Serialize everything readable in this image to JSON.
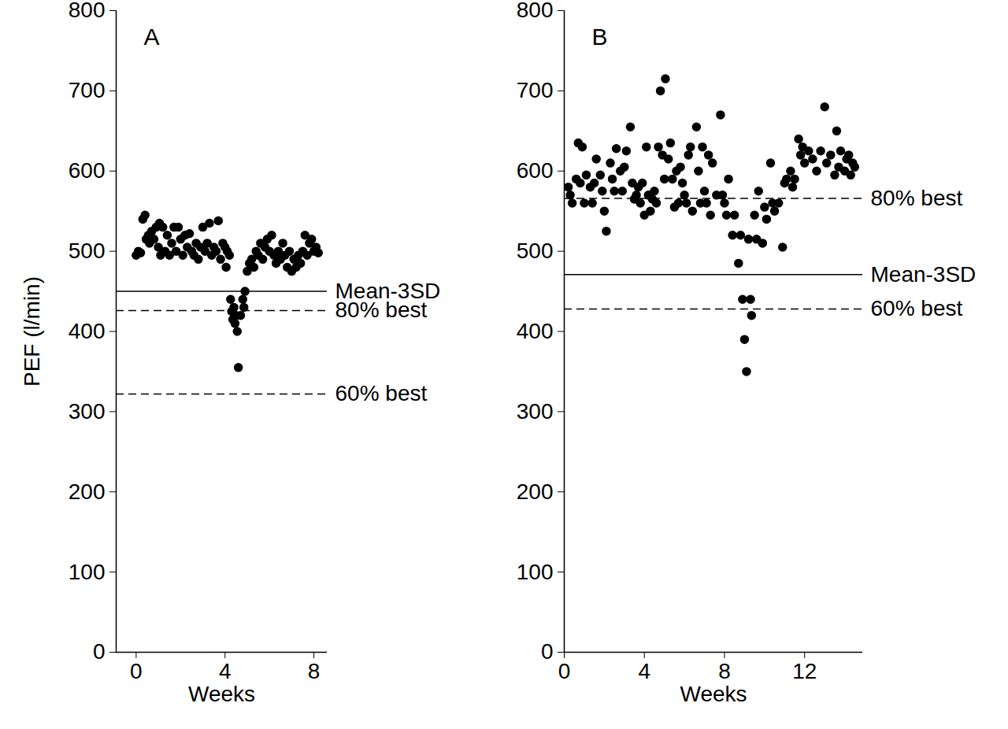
{
  "chart_data": [
    {
      "type": "scatter",
      "title": "A",
      "x_label": "Weeks",
      "y_label": "PEF (l/min)",
      "color": "#000000",
      "marker": "circle",
      "xlim": [
        -0.9,
        8.6
      ],
      "xticks": [
        0,
        4,
        8
      ],
      "ylim": [
        0,
        800
      ],
      "yticks": [
        0,
        100,
        200,
        300,
        400,
        500,
        600,
        700,
        800
      ],
      "x": [
        0.0,
        0.1,
        0.2,
        0.3,
        0.4,
        0.45,
        0.55,
        0.6,
        0.7,
        0.8,
        0.9,
        1.0,
        1.05,
        1.1,
        1.2,
        1.3,
        1.4,
        1.5,
        1.6,
        1.7,
        1.8,
        1.9,
        2.0,
        2.1,
        2.2,
        2.3,
        2.4,
        2.5,
        2.6,
        2.7,
        2.8,
        2.9,
        3.0,
        3.1,
        3.2,
        3.3,
        3.4,
        3.5,
        3.6,
        3.7,
        3.8,
        3.9,
        4.0,
        4.05,
        4.1,
        4.2,
        4.25,
        4.3,
        4.35,
        4.4,
        4.45,
        4.5,
        4.55,
        4.6,
        4.7,
        4.8,
        4.85,
        4.9,
        5.0,
        5.1,
        5.2,
        5.3,
        5.4,
        5.5,
        5.6,
        5.7,
        5.8,
        5.9,
        6.0,
        6.1,
        6.2,
        6.3,
        6.4,
        6.5,
        6.6,
        6.7,
        6.8,
        6.9,
        7.0,
        7.1,
        7.2,
        7.3,
        7.4,
        7.5,
        7.6,
        7.7,
        7.8,
        7.9,
        8.0,
        8.1,
        8.2
      ],
      "values": [
        495,
        500,
        498,
        540,
        545,
        515,
        520,
        510,
        525,
        515,
        530,
        505,
        535,
        495,
        530,
        500,
        520,
        495,
        510,
        530,
        500,
        530,
        515,
        495,
        520,
        505,
        522,
        500,
        495,
        510,
        490,
        505,
        530,
        500,
        510,
        535,
        495,
        505,
        500,
        538,
        490,
        510,
        505,
        480,
        500,
        495,
        440,
        425,
        415,
        430,
        410,
        420,
        400,
        355,
        420,
        440,
        430,
        450,
        475,
        485,
        490,
        480,
        500,
        495,
        510,
        490,
        505,
        515,
        500,
        520,
        495,
        485,
        500,
        490,
        510,
        495,
        480,
        500,
        475,
        490,
        480,
        495,
        485,
        500,
        520,
        495,
        510,
        515,
        500,
        505,
        498
      ],
      "reference_lines": [
        {
          "label": "Mean-3SD",
          "value": 450,
          "line_style": "solid"
        },
        {
          "label": "80% best",
          "value": 426,
          "line_style": "dashed"
        },
        {
          "label": "60% best",
          "value": 322,
          "line_style": "dashed"
        }
      ]
    },
    {
      "type": "scatter",
      "title": "B",
      "x_label": "Weeks",
      "color": "#000000",
      "marker": "circle",
      "xlim": [
        0,
        14.9
      ],
      "xticks": [
        0,
        4,
        8,
        12
      ],
      "ylim": [
        0,
        800
      ],
      "yticks": [
        0,
        100,
        200,
        300,
        400,
        500,
        600,
        700,
        800
      ],
      "x": [
        0.2,
        0.3,
        0.4,
        0.6,
        0.7,
        0.8,
        0.9,
        1.0,
        1.1,
        1.3,
        1.4,
        1.5,
        1.6,
        1.8,
        1.9,
        2.0,
        2.1,
        2.3,
        2.4,
        2.5,
        2.6,
        2.8,
        2.9,
        3.0,
        3.1,
        3.3,
        3.4,
        3.5,
        3.6,
        3.7,
        3.8,
        3.9,
        4.0,
        4.1,
        4.2,
        4.3,
        4.4,
        4.5,
        4.6,
        4.7,
        4.8,
        4.9,
        5.0,
        5.05,
        5.2,
        5.3,
        5.4,
        5.5,
        5.6,
        5.7,
        5.8,
        5.9,
        6.0,
        6.1,
        6.2,
        6.3,
        6.4,
        6.6,
        6.7,
        6.8,
        6.9,
        7.0,
        7.1,
        7.2,
        7.3,
        7.4,
        7.6,
        7.8,
        7.9,
        8.0,
        8.1,
        8.2,
        8.4,
        8.5,
        8.7,
        8.8,
        8.9,
        9.0,
        9.1,
        9.2,
        9.3,
        9.35,
        9.5,
        9.6,
        9.7,
        9.9,
        10.0,
        10.1,
        10.3,
        10.4,
        10.5,
        10.7,
        10.9,
        11.0,
        11.1,
        11.3,
        11.4,
        11.5,
        11.7,
        11.8,
        11.9,
        12.0,
        12.2,
        12.4,
        12.6,
        12.8,
        13.0,
        13.1,
        13.3,
        13.5,
        13.6,
        13.7,
        13.8,
        14.0,
        14.1,
        14.2,
        14.3,
        14.4,
        14.5
      ],
      "values": [
        580,
        570,
        560,
        590,
        635,
        585,
        630,
        560,
        595,
        580,
        560,
        585,
        615,
        595,
        575,
        550,
        525,
        610,
        590,
        575,
        628,
        600,
        575,
        605,
        625,
        655,
        585,
        565,
        570,
        580,
        560,
        585,
        545,
        630,
        570,
        550,
        565,
        575,
        560,
        630,
        700,
        620,
        590,
        715,
        615,
        635,
        590,
        555,
        600,
        560,
        605,
        585,
        570,
        560,
        620,
        630,
        550,
        655,
        600,
        560,
        630,
        575,
        560,
        620,
        545,
        610,
        570,
        670,
        570,
        560,
        545,
        590,
        520,
        545,
        485,
        520,
        440,
        390,
        350,
        515,
        440,
        420,
        545,
        515,
        575,
        510,
        555,
        540,
        610,
        560,
        550,
        560,
        505,
        585,
        590,
        600,
        580,
        590,
        640,
        620,
        630,
        610,
        625,
        615,
        600,
        625,
        680,
        610,
        620,
        595,
        650,
        605,
        625,
        600,
        615,
        620,
        595,
        610,
        605
      ],
      "reference_lines": [
        {
          "label": "80% best",
          "value": 566,
          "line_style": "dashed"
        },
        {
          "label": "Mean-3SD",
          "value": 471,
          "line_style": "solid"
        },
        {
          "label": "60% best",
          "value": 428,
          "line_style": "dashed"
        }
      ]
    }
  ]
}
